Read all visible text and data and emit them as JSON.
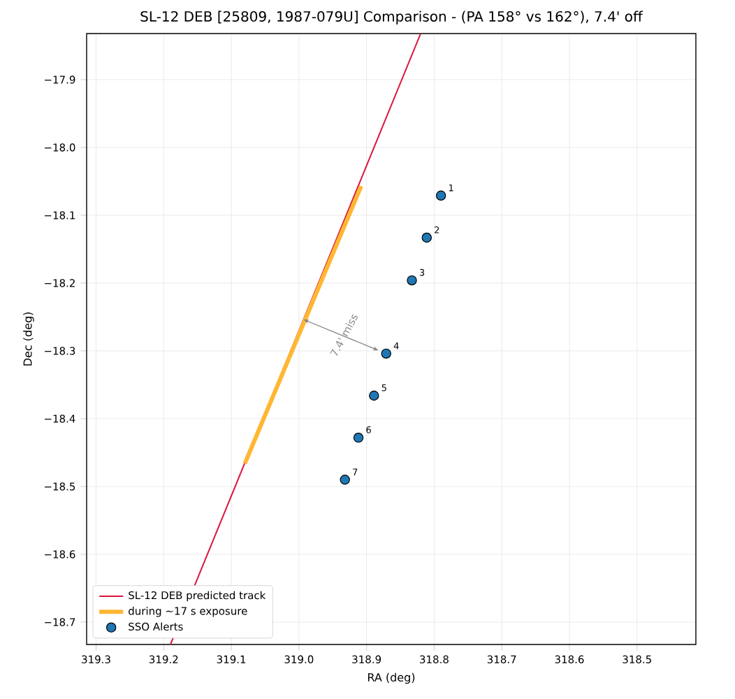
{
  "chart_data": {
    "type": "scatter",
    "title": "SL-12 DEB [25809, 1987-079U] Comparison - (PA 158° vs 162°), 7.4' off",
    "xlabel": "RA (deg)",
    "ylabel": "Dec (deg)",
    "xlim": [
      319.314,
      318.413
    ],
    "ylim": [
      -18.733,
      -17.832
    ],
    "xticks": [
      319.3,
      319.2,
      319.1,
      {
        "value": 319.0,
        "label": "319.0"
      },
      318.9,
      318.8,
      318.7,
      318.6,
      318.5
    ],
    "yticks": [
      {
        "value": -18.7,
        "label": "−18.7"
      },
      {
        "value": -18.6,
        "label": "−18.6"
      },
      {
        "value": -18.5,
        "label": "−18.5"
      },
      {
        "value": -18.4,
        "label": "−18.4"
      },
      {
        "value": -18.3,
        "label": "−18.3"
      },
      {
        "value": -18.2,
        "label": "−18.2"
      },
      {
        "value": -18.1,
        "label": "−18.1"
      },
      {
        "value": -18.0,
        "label": "−18.0"
      },
      {
        "value": -17.9,
        "label": "−17.9"
      }
    ],
    "grid": true,
    "legend": "bottom left",
    "series": [
      {
        "name": "SL-12 DEB predicted track",
        "type": "line",
        "color": "#dc143c",
        "x": [
          318.82,
          319.19
        ],
        "values": [
          -17.832,
          -18.733
        ]
      },
      {
        "name": "during ~17 s exposure",
        "type": "line",
        "color": "#ffb732",
        "x": [
          318.908,
          319.08
        ],
        "values": [
          -18.057,
          -18.466
        ]
      },
      {
        "name": "SSO Alerts",
        "color": "#1f77b4",
        "x": [
          318.79,
          318.811,
          318.833,
          318.871,
          318.889,
          318.912,
          318.932
        ],
        "values": [
          -18.071,
          -18.133,
          -18.196,
          -18.304,
          -18.366,
          -18.428,
          -18.49
        ]
      }
    ],
    "annotations": [
      "7.4' miss",
      {
        "text": "1",
        "x": 318.79,
        "y": -18.071
      },
      {
        "text": "2",
        "x": 318.811,
        "y": -18.133
      },
      {
        "text": "3",
        "x": 318.833,
        "y": -18.196
      },
      {
        "text": "4",
        "x": 318.871,
        "y": -18.304
      },
      {
        "text": "5",
        "x": 318.889,
        "y": -18.366
      },
      {
        "text": "6",
        "x": 318.912,
        "y": -18.428
      },
      {
        "text": "7",
        "x": 318.932,
        "y": -18.49
      }
    ]
  }
}
